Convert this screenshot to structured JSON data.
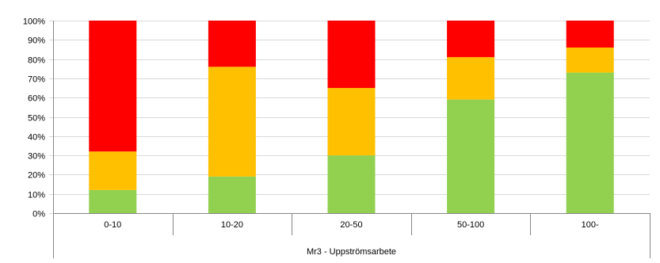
{
  "chart_data": {
    "type": "bar",
    "stacked": true,
    "percent": true,
    "categories": [
      "0-10",
      "10-20",
      "20-50",
      "50-100",
      "100-"
    ],
    "series": [
      {
        "values": [
          12,
          19,
          30,
          59,
          73
        ],
        "color": "#92d050"
      },
      {
        "values": [
          20,
          57,
          35,
          22,
          13
        ],
        "color": "#ffc000"
      },
      {
        "values": [
          68,
          24,
          35,
          19,
          14
        ],
        "color": "#ff0000"
      }
    ],
    "yticks": [
      "0%",
      "10%",
      "20%",
      "30%",
      "40%",
      "50%",
      "60%",
      "70%",
      "80%",
      "90%",
      "100%"
    ],
    "ylim": [
      0,
      100
    ],
    "xgroup_label": "Mr3 - Uppströmsarbete",
    "grid": true,
    "legend": "none"
  }
}
